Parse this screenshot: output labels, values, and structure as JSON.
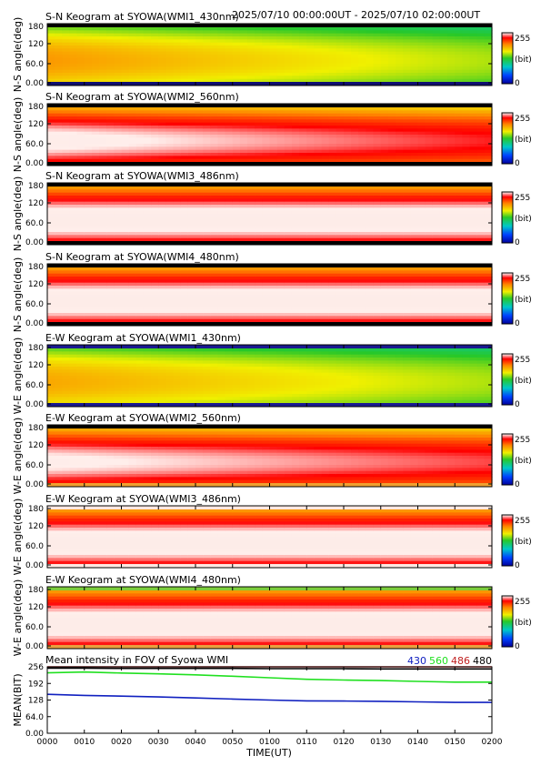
{
  "header": {
    "time_range": "2025/07/10 00:00:00UT - 2025/07/10 02:00:00UT"
  },
  "colorbar": {
    "max_label": "255",
    "unit_label": "(bit)",
    "min_label": "0"
  },
  "time_axis": {
    "label": "TIME(UT)",
    "ticks": [
      "0000",
      "0010",
      "0020",
      "0030",
      "0040",
      "0050",
      "0100",
      "0110",
      "0120",
      "0130",
      "0140",
      "0150",
      "0200"
    ]
  },
  "chart_data": [
    {
      "type": "heatmap",
      "title": "S-N Keogram at SYOWA(WMI1_430nm)",
      "ylabel": "N-S angle(deg)",
      "yticks": [
        "180",
        "120",
        "60.0",
        "0.00"
      ],
      "ylim": [
        0,
        180
      ],
      "xlim": [
        "0000",
        "0200"
      ],
      "colorbar_range": [
        0,
        255
      ],
      "intensity_estimate": {
        "start_bit": 190,
        "end_bit": 150
      },
      "edge_colors": {
        "top": "#000000",
        "bottom": "#101070"
      }
    },
    {
      "type": "heatmap",
      "title": "S-N Keogram at SYOWA(WMI2_560nm)",
      "ylabel": "N-S angle(deg)",
      "yticks": [
        "180",
        "120",
        "60.0",
        "0.00"
      ],
      "ylim": [
        0,
        180
      ],
      "xlim": [
        "0000",
        "0200"
      ],
      "colorbar_range": [
        0,
        255
      ],
      "intensity_estimate": {
        "start_bit": 252,
        "end_bit": 232
      },
      "edge_colors": {
        "top": "#000000",
        "bottom": "#000000"
      }
    },
    {
      "type": "heatmap",
      "title": "S-N Keogram at SYOWA(WMI3_486nm)",
      "ylabel": "N-S angle(deg)",
      "yticks": [
        "180",
        "120",
        "60.0",
        "0.00"
      ],
      "ylim": [
        0,
        180
      ],
      "xlim": [
        "0000",
        "0200"
      ],
      "colorbar_range": [
        0,
        255
      ],
      "intensity_estimate": {
        "start_bit": 255,
        "end_bit": 255
      },
      "edge_colors": {
        "top": "#000000",
        "bottom": "#000000"
      }
    },
    {
      "type": "heatmap",
      "title": "S-N Keogram at SYOWA(WMI4_480nm)",
      "ylabel": "N-S angle(deg)",
      "yticks": [
        "180",
        "120",
        "60.0",
        "0.00"
      ],
      "ylim": [
        0,
        180
      ],
      "xlim": [
        "0000",
        "0200"
      ],
      "colorbar_range": [
        0,
        255
      ],
      "intensity_estimate": {
        "start_bit": 255,
        "end_bit": 255
      },
      "edge_colors": {
        "top": "#000000",
        "bottom": "#000000"
      }
    },
    {
      "type": "heatmap",
      "title": "E-W Keogram at SYOWA(WMI1_430nm)",
      "ylabel": "W-E angle(deg)",
      "yticks": [
        "180",
        "120",
        "60.0",
        "0.00"
      ],
      "ylim": [
        0,
        180
      ],
      "xlim": [
        "0000",
        "0200"
      ],
      "colorbar_range": [
        0,
        255
      ],
      "intensity_estimate": {
        "start_bit": 185,
        "end_bit": 150
      },
      "edge_colors": {
        "top": "#1a1a90",
        "bottom": "#1a1a90"
      }
    },
    {
      "type": "heatmap",
      "title": "E-W Keogram at SYOWA(WMI2_560nm)",
      "ylabel": "W-E angle(deg)",
      "yticks": [
        "180",
        "120",
        "60.0",
        "0.00"
      ],
      "ylim": [
        0,
        180
      ],
      "xlim": [
        "0000",
        "0200"
      ],
      "colorbar_range": [
        0,
        255
      ],
      "intensity_estimate": {
        "start_bit": 250,
        "end_bit": 235
      },
      "edge_colors": {
        "top": "#000000",
        "bottom": "#f0a030"
      }
    },
    {
      "type": "heatmap",
      "title": "E-W Keogram at SYOWA(WMI3_486nm)",
      "ylabel": "W-E angle(deg)",
      "yticks": [
        "180",
        "120",
        "60.0",
        "0.00"
      ],
      "ylim": [
        0,
        180
      ],
      "xlim": [
        "0000",
        "0200"
      ],
      "colorbar_range": [
        0,
        255
      ],
      "intensity_estimate": {
        "start_bit": 255,
        "end_bit": 255
      },
      "edge_colors": {
        "top": "#fde8e2",
        "bottom": "#fde8e2"
      }
    },
    {
      "type": "heatmap",
      "title": "E-W Keogram at SYOWA(WMI4_480nm)",
      "ylabel": "W-E angle(deg)",
      "yticks": [
        "180",
        "120",
        "60.0",
        "0.00"
      ],
      "ylim": [
        0,
        180
      ],
      "xlim": [
        "0000",
        "0200"
      ],
      "colorbar_range": [
        0,
        255
      ],
      "intensity_estimate": {
        "start_bit": 255,
        "end_bit": 255
      },
      "edge_colors": {
        "top": "#7dcc3a",
        "bottom": "#e8a040"
      }
    },
    {
      "type": "line",
      "title": "Mean intensity in FOV of Syowa WMI",
      "xlabel": "TIME(UT)",
      "ylabel": "MEAN(BIT)",
      "yticks": [
        "256",
        "192",
        "128",
        "64.0",
        "0.00"
      ],
      "ylim": [
        0,
        256
      ],
      "x": [
        0,
        10,
        20,
        30,
        40,
        50,
        60,
        70,
        80,
        90,
        100,
        110,
        120
      ],
      "series": [
        {
          "name": "430",
          "color": "#1020c0",
          "values": [
            150,
            146,
            143,
            140,
            136,
            132,
            128,
            125,
            124,
            123,
            121,
            119,
            119
          ]
        },
        {
          "name": "560",
          "color": "#20e020",
          "values": [
            233,
            236,
            232,
            229,
            225,
            220,
            214,
            208,
            205,
            203,
            200,
            197,
            197
          ]
        },
        {
          "name": "486",
          "color": "#c02020",
          "values": [
            256,
            256,
            256,
            256,
            256,
            256,
            256,
            256,
            256,
            256,
            256,
            256,
            256
          ]
        },
        {
          "name": "480",
          "color": "#000000",
          "values": [
            251,
            251,
            250,
            250,
            250,
            250,
            249,
            249,
            249,
            248,
            248,
            248,
            248
          ]
        }
      ]
    }
  ]
}
